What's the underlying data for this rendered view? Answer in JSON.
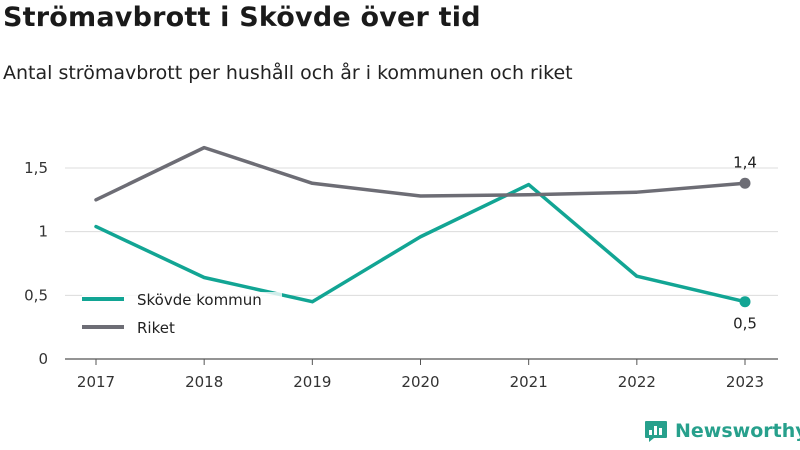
{
  "title": "Strömavbrott i Skövde över tid",
  "subtitle": "Antal strömavbrott per hushåll och år i kommunen och riket",
  "brand": {
    "name": "Newsworthy",
    "icon": "bar-chart-logo-icon",
    "color": "#27a08c"
  },
  "chart_data": {
    "type": "line",
    "categories": [
      "2017",
      "2018",
      "2019",
      "2020",
      "2021",
      "2022",
      "2023"
    ],
    "y_ticks": [
      0,
      0.5,
      1,
      1.5
    ],
    "y_tick_labels": [
      "0",
      "0,5",
      "1",
      "1,5"
    ],
    "ylim": [
      0,
      1.5
    ],
    "grid": true,
    "legend_placement": "bottom-left",
    "xlabel": "",
    "ylabel": "",
    "series": [
      {
        "name": "Skövde kommun",
        "color": "#12a594",
        "values": [
          1.04,
          0.64,
          0.45,
          0.96,
          1.37,
          0.65,
          0.45
        ],
        "end_label": "0,5",
        "end_label_position": "below"
      },
      {
        "name": "Riket",
        "color": "#6d6d75",
        "values": [
          1.25,
          1.66,
          1.38,
          1.28,
          1.29,
          1.31,
          1.38
        ],
        "end_label": "1,4",
        "end_label_position": "above"
      }
    ]
  }
}
